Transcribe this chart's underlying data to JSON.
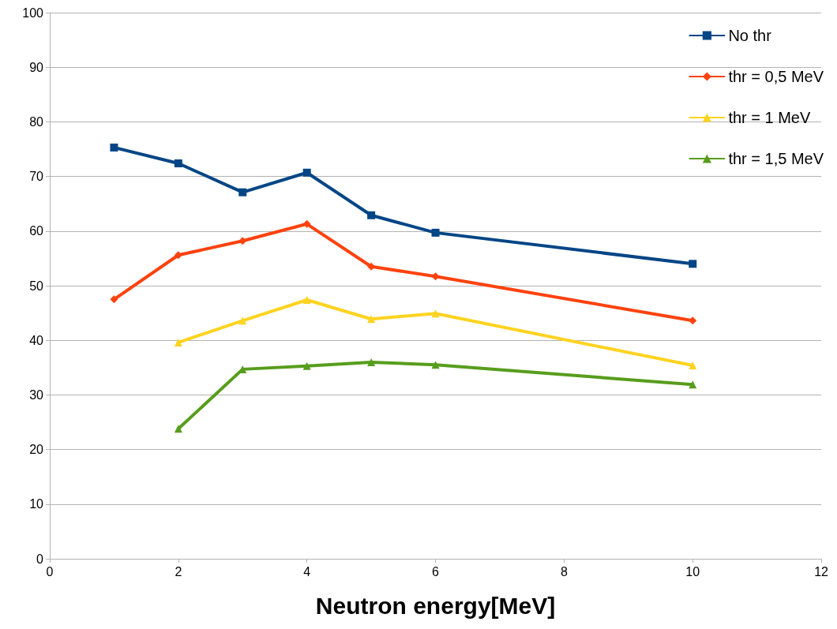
{
  "chart_data": {
    "type": "line",
    "xlabel": "Neutron energy[MeV]",
    "xlim": [
      0,
      12
    ],
    "xticks": [
      0,
      2,
      4,
      6,
      8,
      10,
      12
    ],
    "ylim": [
      0,
      100
    ],
    "yticks": [
      0,
      10,
      20,
      30,
      40,
      50,
      60,
      70,
      80,
      90,
      100
    ],
    "grid": "y",
    "legend": "top right",
    "line_style": "solid",
    "series": [
      {
        "name": "No thr",
        "color": "#004586",
        "marker": "square",
        "x": [
          1,
          2,
          3,
          4,
          5,
          6,
          10
        ],
        "values": [
          75.3,
          72.4,
          67.1,
          70.7,
          62.9,
          59.7,
          54.0
        ]
      },
      {
        "name": "thr = 0,5 MeV",
        "color": "#ff420e",
        "marker": "diamond",
        "x": [
          1,
          2,
          3,
          4,
          5,
          6,
          10
        ],
        "values": [
          47.5,
          55.6,
          58.2,
          61.3,
          53.5,
          51.7,
          43.6
        ]
      },
      {
        "name": "thr = 1 MeV",
        "color": "#ffd320",
        "marker": "triangle",
        "x": [
          2,
          3,
          4,
          5,
          6,
          10
        ],
        "values": [
          39.6,
          43.6,
          47.4,
          43.9,
          44.9,
          35.4
        ]
      },
      {
        "name": "thr = 1,5 MeV",
        "color": "#579d1c",
        "marker": "triangle",
        "x": [
          2,
          3,
          4,
          5,
          6,
          10
        ],
        "values": [
          23.8,
          34.7,
          35.3,
          36.0,
          35.5,
          31.9
        ]
      }
    ]
  }
}
